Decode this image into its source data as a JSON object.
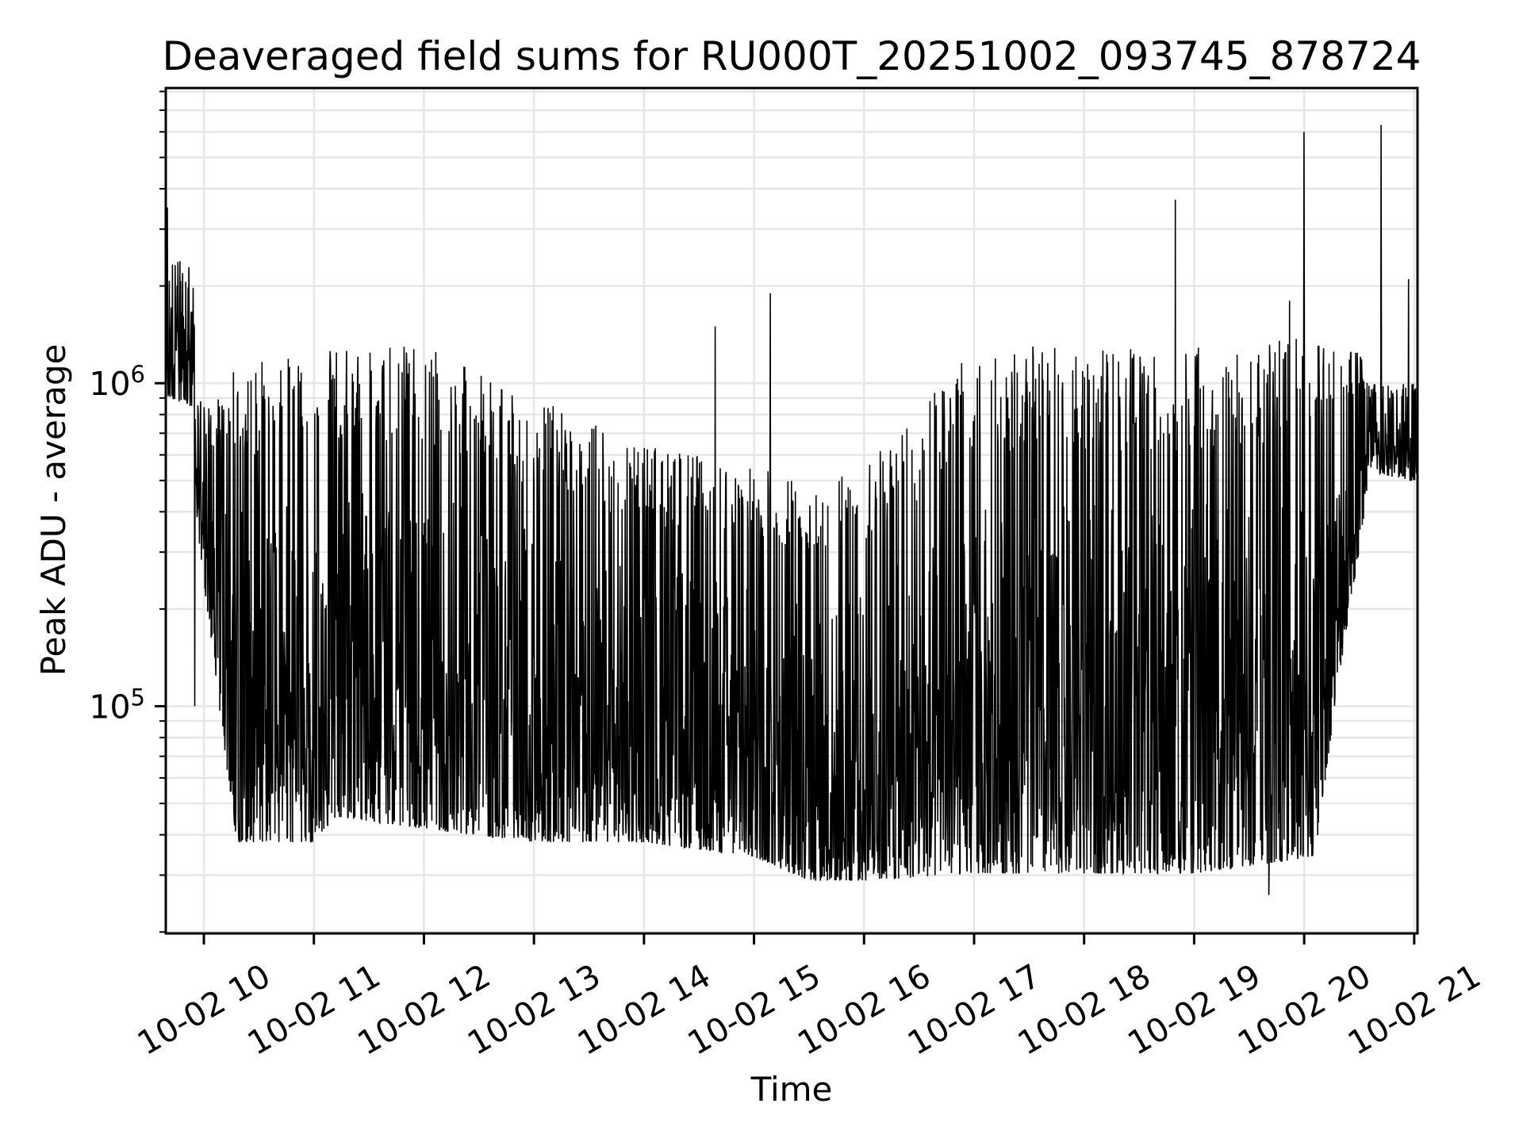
{
  "chart_data": {
    "type": "line",
    "title": "Deaveraged field sums for RU000T_20251002_093745_878724",
    "xlabel": "Time",
    "ylabel": "Peak ADU - average",
    "x_unit": "hour of day 2025-10-02",
    "xlim": [
      9.654,
      21.03
    ],
    "ylim": [
      19800,
      8200000
    ],
    "yscale": "log",
    "grid": "major and minor, both axes",
    "line_color": "#000000",
    "grid_color": "#e6e6e6",
    "x_ticks": [
      {
        "value": 10,
        "label": "10-02 10"
      },
      {
        "value": 11,
        "label": "10-02 11"
      },
      {
        "value": 12,
        "label": "10-02 12"
      },
      {
        "value": 13,
        "label": "10-02 13"
      },
      {
        "value": 14,
        "label": "10-02 14"
      },
      {
        "value": 15,
        "label": "10-02 15"
      },
      {
        "value": 16,
        "label": "10-02 16"
      },
      {
        "value": 17,
        "label": "10-02 17"
      },
      {
        "value": 18,
        "label": "10-02 18"
      },
      {
        "value": 19,
        "label": "10-02 19"
      },
      {
        "value": 20,
        "label": "10-02 20"
      },
      {
        "value": 21,
        "label": "10-02 21"
      }
    ],
    "y_ticks": [
      {
        "value": 100000,
        "base": "10",
        "exp": "5"
      },
      {
        "value": 1000000,
        "base": "10",
        "exp": "6"
      }
    ],
    "envelope_note": "series is a dense, spiky trace; envelope gives approximate low/high values per time segment",
    "envelope": [
      {
        "t": 9.654,
        "low": 1200000,
        "high": 2500000
      },
      {
        "t": 9.9,
        "low": 1100000,
        "high": 2300000
      },
      {
        "t": 9.93,
        "low": 500000,
        "high": 900000
      },
      {
        "t": 10.2,
        "low": 90000,
        "high": 900000
      },
      {
        "t": 10.3,
        "low": 50000,
        "high": 1200000
      },
      {
        "t": 11.0,
        "low": 50000,
        "high": 1200000
      },
      {
        "t": 11.2,
        "low": 60000,
        "high": 1300000
      },
      {
        "t": 12.0,
        "low": 55000,
        "high": 1300000
      },
      {
        "t": 13.0,
        "low": 50000,
        "high": 900000
      },
      {
        "t": 14.0,
        "low": 50000,
        "high": 650000
      },
      {
        "t": 15.0,
        "low": 45000,
        "high": 550000
      },
      {
        "t": 15.5,
        "low": 38000,
        "high": 500000
      },
      {
        "t": 16.0,
        "low": 38000,
        "high": 550000
      },
      {
        "t": 17.0,
        "low": 40000,
        "high": 1300000
      },
      {
        "t": 18.0,
        "low": 40000,
        "high": 1300000
      },
      {
        "t": 19.0,
        "low": 40000,
        "high": 1300000
      },
      {
        "t": 20.1,
        "low": 45000,
        "high": 1400000
      },
      {
        "t": 20.3,
        "low": 150000,
        "high": 1300000
      },
      {
        "t": 20.5,
        "low": 400000,
        "high": 1300000
      },
      {
        "t": 20.6,
        "low": 700000,
        "high": 1000000
      },
      {
        "t": 21.03,
        "low": 650000,
        "high": 1000000
      }
    ],
    "spikes": [
      {
        "t": 9.67,
        "value": 3500000
      },
      {
        "t": 9.92,
        "value": 100000
      },
      {
        "t": 14.65,
        "value": 1500000
      },
      {
        "t": 15.15,
        "value": 1900000
      },
      {
        "t": 18.83,
        "value": 3700000
      },
      {
        "t": 19.68,
        "value": 26000
      },
      {
        "t": 19.87,
        "value": 1800000
      },
      {
        "t": 20.0,
        "value": 6000000
      },
      {
        "t": 20.7,
        "value": 6300000
      },
      {
        "t": 20.95,
        "value": 2100000
      }
    ]
  }
}
